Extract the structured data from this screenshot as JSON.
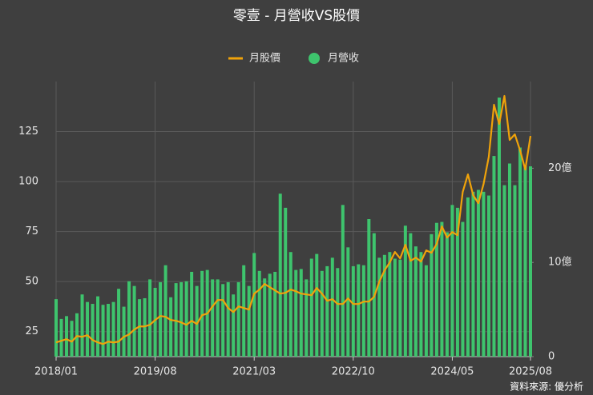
{
  "chart_data": {
    "type": "bar_line",
    "title": "零壹 - 月營收VS股價",
    "source": "資料來源: 優分析",
    "categories": [
      "2018/01",
      null,
      null,
      null,
      null,
      null,
      null,
      null,
      null,
      null,
      null,
      null,
      null,
      null,
      null,
      null,
      null,
      null,
      null,
      "2019/08",
      null,
      null,
      null,
      null,
      null,
      null,
      null,
      null,
      null,
      null,
      null,
      null,
      null,
      null,
      null,
      null,
      null,
      null,
      "2021/03",
      null,
      null,
      null,
      null,
      null,
      null,
      null,
      null,
      null,
      null,
      null,
      null,
      null,
      null,
      null,
      null,
      null,
      null,
      "2022/10",
      null,
      null,
      null,
      null,
      null,
      null,
      null,
      null,
      null,
      null,
      null,
      null,
      null,
      null,
      null,
      null,
      null,
      null,
      "2024/05",
      null,
      null,
      null,
      null,
      null,
      null,
      null,
      null,
      null,
      null,
      null,
      null,
      null,
      null,
      "2025/08"
    ],
    "series": [
      {
        "name": "月股價",
        "kind": "line",
        "color": "#f0a30a",
        "axis": "y",
        "values": [
          19.6,
          20.4,
          21.2,
          20,
          22.8,
          22.4,
          23.2,
          20.8,
          19.6,
          18.8,
          20,
          19.6,
          20,
          22.4,
          23.6,
          26,
          27.6,
          27.6,
          28.4,
          30.8,
          32.8,
          32.4,
          30.8,
          30.4,
          29.6,
          28.4,
          30.4,
          28.8,
          33.2,
          34,
          37.6,
          40.8,
          40.8,
          36.8,
          34.8,
          37.6,
          36.8,
          36,
          44,
          46,
          48.8,
          47.2,
          45.6,
          44,
          44.4,
          46,
          45.2,
          44,
          43.6,
          43.2,
          46.8,
          44,
          40.4,
          41.2,
          38.8,
          38.8,
          41.6,
          38.8,
          38.8,
          40,
          40,
          42.4,
          50,
          55.6,
          59.6,
          64.8,
          61.6,
          68.4,
          60.4,
          62,
          60,
          65.6,
          64.4,
          68.8,
          77.6,
          72,
          74.8,
          73.2,
          94.8,
          103.6,
          93.2,
          89.2,
          98.8,
          112.4,
          138.4,
          128.8,
          142.8,
          120.8,
          123.6,
          115.6,
          106,
          122.8
        ]
      },
      {
        "name": "月營收",
        "kind": "bar",
        "color": "#3ec46d",
        "axis": "y2",
        "values": [
          6.1,
          4.0,
          4.3,
          3.8,
          4.6,
          6.6,
          5.8,
          5.6,
          6.4,
          5.5,
          5.6,
          5.8,
          7.2,
          5.3,
          8.0,
          7.5,
          6.1,
          6.2,
          8.2,
          7.3,
          7.9,
          9.7,
          6.3,
          7.8,
          7.9,
          8.0,
          9.0,
          7.5,
          9.1,
          9.2,
          8.2,
          8.2,
          7.7,
          7.9,
          6.6,
          7.9,
          9.7,
          7.5,
          11.0,
          9.1,
          8.3,
          8.8,
          9.0,
          17.3,
          15.8,
          11.1,
          9.2,
          9.3,
          8.2,
          10.4,
          10.9,
          9.1,
          9.6,
          10.5,
          9.4,
          16.1,
          11.6,
          9.6,
          9.8,
          9.7,
          14.6,
          13.1,
          10.5,
          10.8,
          11.1,
          10.4,
          10.3,
          13.9,
          13.1,
          11.7,
          11.1,
          9.7,
          13.0,
          14.2,
          14.3,
          13.2,
          16.1,
          15.8,
          14.3,
          16.9,
          17.5,
          17.7,
          17.5,
          17.1,
          21.3,
          27.5,
          18.2,
          20.5,
          18.2,
          22.2,
          20.2,
          20.2
        ]
      }
    ],
    "ylim": [
      12.5,
      150
    ],
    "yticks": [
      25,
      50,
      75,
      100,
      125
    ],
    "y2lim": [
      0,
      29.2
    ],
    "y2ticks": [
      0,
      {
        "value": 10,
        "label": "10億"
      },
      {
        "value": 20,
        "label": "20億"
      }
    ],
    "grid": true
  }
}
